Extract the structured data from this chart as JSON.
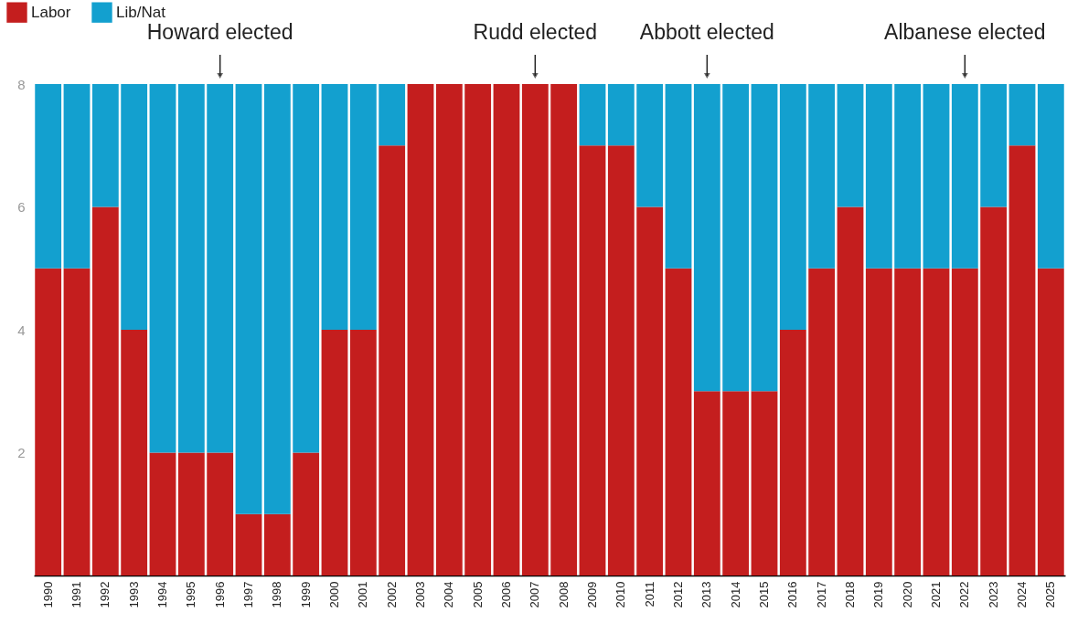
{
  "chart_data": {
    "type": "bar",
    "stacked": true,
    "categories": [
      "1990",
      "1991",
      "1992",
      "1993",
      "1994",
      "1995",
      "1996",
      "1997",
      "1998",
      "1999",
      "2000",
      "2001",
      "2002",
      "2003",
      "2004",
      "2005",
      "2006",
      "2007",
      "2008",
      "2009",
      "2010",
      "2011",
      "2012",
      "2013",
      "2014",
      "2015",
      "2016",
      "2017",
      "2018",
      "2019",
      "2020",
      "2021",
      "2022",
      "2023",
      "2024",
      "2025"
    ],
    "series": [
      {
        "name": "Labor",
        "color": "#c41e1e",
        "values": [
          5,
          5,
          6,
          4,
          2,
          2,
          2,
          1,
          1,
          2,
          4,
          4,
          7,
          8,
          8,
          8,
          8,
          8,
          8,
          7,
          7,
          6,
          5,
          3,
          3,
          3,
          4,
          5,
          6,
          5,
          5,
          5,
          5,
          6,
          7,
          5
        ]
      },
      {
        "name": "Lib/Nat",
        "color": "#13a0cf",
        "values": [
          3,
          3,
          2,
          4,
          6,
          6,
          6,
          7,
          7,
          6,
          4,
          4,
          1,
          0,
          0,
          0,
          0,
          0,
          0,
          1,
          1,
          2,
          3,
          5,
          5,
          5,
          4,
          3,
          2,
          3,
          3,
          3,
          3,
          2,
          1,
          3
        ]
      }
    ],
    "ylim": [
      0,
      8
    ],
    "yticks": [
      2,
      4,
      6,
      8
    ],
    "legend": "top left",
    "annotations": [
      {
        "text": "Howard elected",
        "x": "1996",
        "y": 8
      },
      {
        "text": "Rudd elected",
        "x": "2007",
        "y": 8
      },
      {
        "text": "Abbott elected",
        "x": "2013",
        "y": 8
      },
      {
        "text": "Albanese elected",
        "x": "2022",
        "y": 8
      }
    ]
  }
}
